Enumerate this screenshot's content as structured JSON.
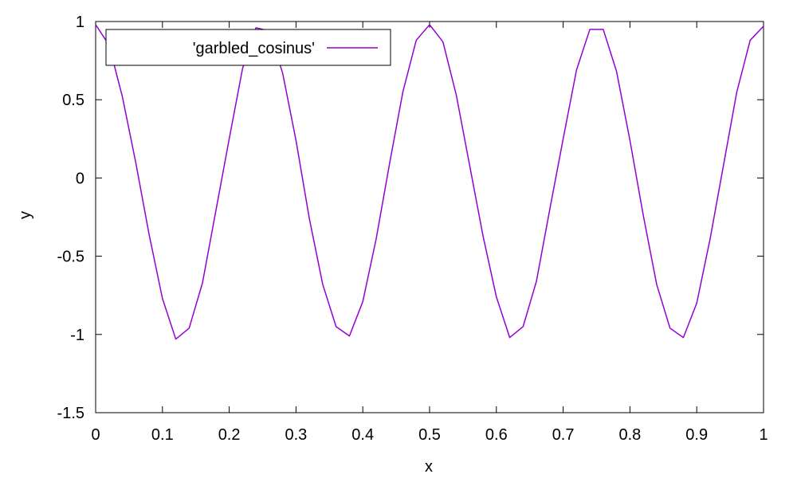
{
  "chart_data": {
    "type": "line",
    "title": "",
    "xlabel": "x",
    "ylabel": "y",
    "xlim": [
      0,
      1
    ],
    "ylim": [
      -1.5,
      1
    ],
    "x_ticks": [
      0,
      0.1,
      0.2,
      0.3,
      0.4,
      0.5,
      0.6,
      0.7,
      0.8,
      0.9,
      1
    ],
    "x_tick_labels": [
      "0",
      "0.1",
      "0.2",
      "0.3",
      "0.4",
      "0.5",
      "0.6",
      "0.7",
      "0.8",
      "0.9",
      "1"
    ],
    "y_ticks": [
      -1.5,
      -1,
      -0.5,
      0,
      0.5,
      1
    ],
    "y_tick_labels": [
      "-1.5",
      "-1",
      "-0.5",
      "0",
      "0.5",
      "1"
    ],
    "grid": false,
    "legend": {
      "position": "top-left",
      "entries": [
        "'garbled_cosinus'"
      ]
    },
    "series": [
      {
        "name": "'garbled_cosinus'",
        "color": "#9400d3",
        "x": [
          0,
          0.02,
          0.04,
          0.06,
          0.08,
          0.1,
          0.12,
          0.14,
          0.16,
          0.18,
          0.2,
          0.22,
          0.24,
          0.26,
          0.28,
          0.3,
          0.32,
          0.34,
          0.36,
          0.38,
          0.4,
          0.42,
          0.44,
          0.46,
          0.48,
          0.5,
          0.52,
          0.54,
          0.56,
          0.58,
          0.6,
          0.62,
          0.64,
          0.66,
          0.68,
          0.7,
          0.72,
          0.74,
          0.76,
          0.78,
          0.8,
          0.82,
          0.84,
          0.86,
          0.88,
          0.9,
          0.92,
          0.94,
          0.96,
          0.98,
          1.0
        ],
        "y": [
          0.98,
          0.85,
          0.52,
          0.1,
          -0.36,
          -0.77,
          -1.03,
          -0.96,
          -0.67,
          -0.21,
          0.25,
          0.7,
          0.96,
          0.94,
          0.67,
          0.24,
          -0.26,
          -0.68,
          -0.95,
          -1.01,
          -0.79,
          -0.39,
          0.09,
          0.55,
          0.88,
          0.98,
          0.87,
          0.53,
          0.08,
          -0.37,
          -0.76,
          -1.02,
          -0.95,
          -0.66,
          -0.2,
          0.25,
          0.69,
          0.95,
          0.95,
          0.68,
          0.24,
          -0.24,
          -0.68,
          -0.96,
          -1.02,
          -0.8,
          -0.39,
          0.08,
          0.55,
          0.88,
          0.97
        ]
      }
    ]
  }
}
